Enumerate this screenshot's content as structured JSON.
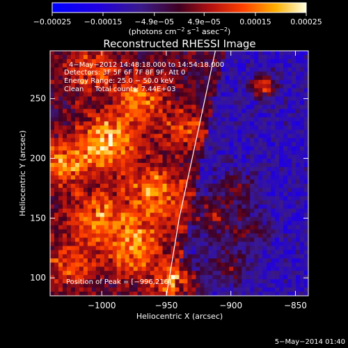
{
  "chart_data": {
    "type": "heatmap",
    "title": "Reconstructed RHESSI Image",
    "xlabel": "Heliocentric X (arcsec)",
    "ylabel": "Heliocentric Y (arcsec)",
    "xlim": [
      -1040,
      -840
    ],
    "ylim": [
      85,
      290
    ],
    "x_ticks": [
      -1000,
      -950,
      -900,
      -850
    ],
    "x_tick_labels": [
      "−1000",
      "−950",
      "−900",
      "−850"
    ],
    "y_ticks": [
      100,
      150,
      200,
      250
    ],
    "y_tick_labels": [
      "100",
      "150",
      "200",
      "250"
    ],
    "colorbar": {
      "range": [
        -0.00025,
        0.00025
      ],
      "ticks": [
        -0.00025,
        -0.00015,
        -4.9e-05,
        4.9e-05,
        0.00015,
        0.00025
      ],
      "tick_labels": [
        "−0.00025",
        "−0.00015",
        "−4.9e−05",
        "4.9e−05",
        "0.00015",
        "0.00025"
      ],
      "unit_main": "(photons cm",
      "unit_exp1": "−2",
      "unit_mid": " s",
      "unit_exp2": "−1",
      "unit_tail": " asec",
      "unit_exp3": "−2",
      "unit_close": ")"
    },
    "info_lines": [
      "4−May−2012 14:48:18.000 to 14:54:18.000",
      "Detectors: 3F 5F 6F 7F 8F 9F, Att 0",
      "Energy Range: 25.0 − 50.0 keV",
      "Clean     Total counts: 7.44E+03"
    ],
    "peak_label": "Position of Peak = [−996,216]",
    "peak_position": [
      -996,
      216
    ],
    "limb": [
      [
        -950,
        85
      ],
      [
        -940,
        150
      ],
      [
        -930,
        200
      ],
      [
        -920,
        250
      ],
      [
        -912,
        290
      ]
    ],
    "bright_sources": [
      {
        "x": -995,
        "y": 214,
        "r": 22,
        "v": 0.00024
      },
      {
        "x": -1030,
        "y": 195,
        "r": 18,
        "v": 0.00018
      },
      {
        "x": -970,
        "y": 250,
        "r": 20,
        "v": 0.00016
      },
      {
        "x": -1010,
        "y": 275,
        "r": 18,
        "v": 0.00014
      },
      {
        "x": -960,
        "y": 170,
        "r": 24,
        "v": 0.00017
      },
      {
        "x": -1005,
        "y": 150,
        "r": 22,
        "v": 0.00016
      },
      {
        "x": -975,
        "y": 125,
        "r": 22,
        "v": 0.00018
      },
      {
        "x": -1025,
        "y": 110,
        "r": 18,
        "v": 0.00014
      },
      {
        "x": -940,
        "y": 95,
        "r": 18,
        "v": 0.00022
      },
      {
        "x": -935,
        "y": 225,
        "r": 16,
        "v": 0.00013
      },
      {
        "x": -915,
        "y": 150,
        "r": 20,
        "v": 0.00014
      },
      {
        "x": -895,
        "y": 175,
        "r": 16,
        "v": 0.00012
      },
      {
        "x": -900,
        "y": 110,
        "r": 16,
        "v": 0.00012
      },
      {
        "x": -875,
        "y": 260,
        "r": 10,
        "v": 0.00023
      },
      {
        "x": -885,
        "y": 140,
        "r": 14,
        "v": 0.0001
      }
    ],
    "dark_region": {
      "x0": -930,
      "x1": -840,
      "v": -0.00011
    },
    "date_stamp": "5−May−2014 01:40"
  }
}
